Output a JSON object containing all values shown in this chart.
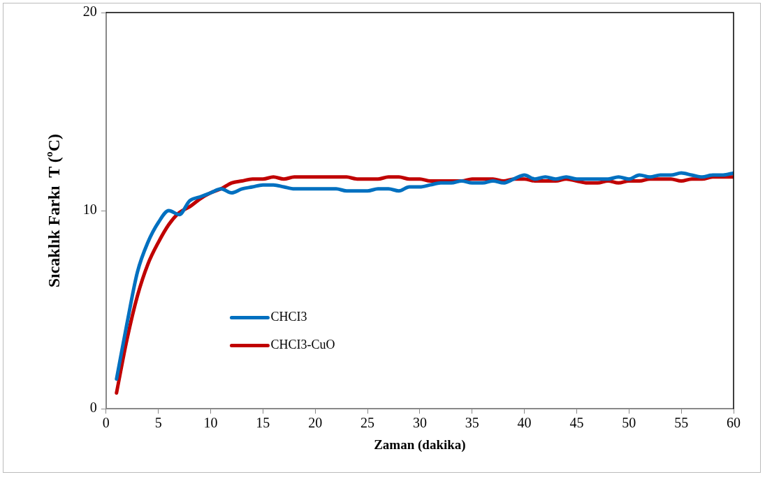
{
  "chart_data": {
    "type": "line",
    "xlabel": "Zaman (dakika)",
    "ylabel": "Sıcaklık Farkı  T (ºC)",
    "x": [
      1,
      2,
      3,
      4,
      5,
      6,
      7,
      8,
      9,
      10,
      11,
      12,
      13,
      14,
      15,
      16,
      17,
      18,
      19,
      20,
      21,
      22,
      23,
      24,
      25,
      26,
      27,
      28,
      29,
      30,
      31,
      32,
      33,
      34,
      35,
      36,
      37,
      38,
      39,
      40,
      41,
      42,
      43,
      44,
      45,
      46,
      47,
      48,
      49,
      50,
      51,
      52,
      53,
      54,
      55,
      56,
      57,
      58,
      59,
      60
    ],
    "series": [
      {
        "name": "CHCI3",
        "color": "#0070c0",
        "values": [
          1.5,
          4.3,
          6.9,
          8.4,
          9.4,
          10.0,
          9.8,
          10.5,
          10.7,
          10.9,
          11.1,
          10.9,
          11.1,
          11.2,
          11.3,
          11.3,
          11.2,
          11.1,
          11.1,
          11.1,
          11.1,
          11.1,
          11.0,
          11.0,
          11.0,
          11.1,
          11.1,
          11.0,
          11.2,
          11.2,
          11.3,
          11.4,
          11.4,
          11.5,
          11.4,
          11.4,
          11.5,
          11.4,
          11.6,
          11.8,
          11.6,
          11.7,
          11.6,
          11.7,
          11.6,
          11.6,
          11.6,
          11.6,
          11.7,
          11.6,
          11.8,
          11.7,
          11.8,
          11.8,
          11.9,
          11.8,
          11.7,
          11.8,
          11.8,
          11.9
        ]
      },
      {
        "name": "CHCI3-CuO",
        "color": "#c00000",
        "values": [
          0.8,
          3.5,
          5.7,
          7.3,
          8.4,
          9.3,
          9.9,
          10.2,
          10.6,
          10.9,
          11.1,
          11.4,
          11.5,
          11.6,
          11.6,
          11.7,
          11.6,
          11.7,
          11.7,
          11.7,
          11.7,
          11.7,
          11.7,
          11.6,
          11.6,
          11.6,
          11.7,
          11.7,
          11.6,
          11.6,
          11.5,
          11.5,
          11.5,
          11.5,
          11.6,
          11.6,
          11.6,
          11.5,
          11.6,
          11.6,
          11.5,
          11.5,
          11.5,
          11.6,
          11.5,
          11.4,
          11.4,
          11.5,
          11.4,
          11.5,
          11.5,
          11.6,
          11.6,
          11.6,
          11.5,
          11.6,
          11.6,
          11.7,
          11.7,
          11.7
        ]
      }
    ],
    "xlim": [
      0,
      60
    ],
    "xticks": [
      0,
      5,
      10,
      15,
      20,
      25,
      30,
      35,
      40,
      45,
      50,
      55,
      60
    ],
    "ylim": [
      0,
      20
    ],
    "yticks": [
      0,
      10,
      20
    ],
    "grid": false,
    "legend": "left",
    "marker": "none",
    "line_style": "solid"
  }
}
